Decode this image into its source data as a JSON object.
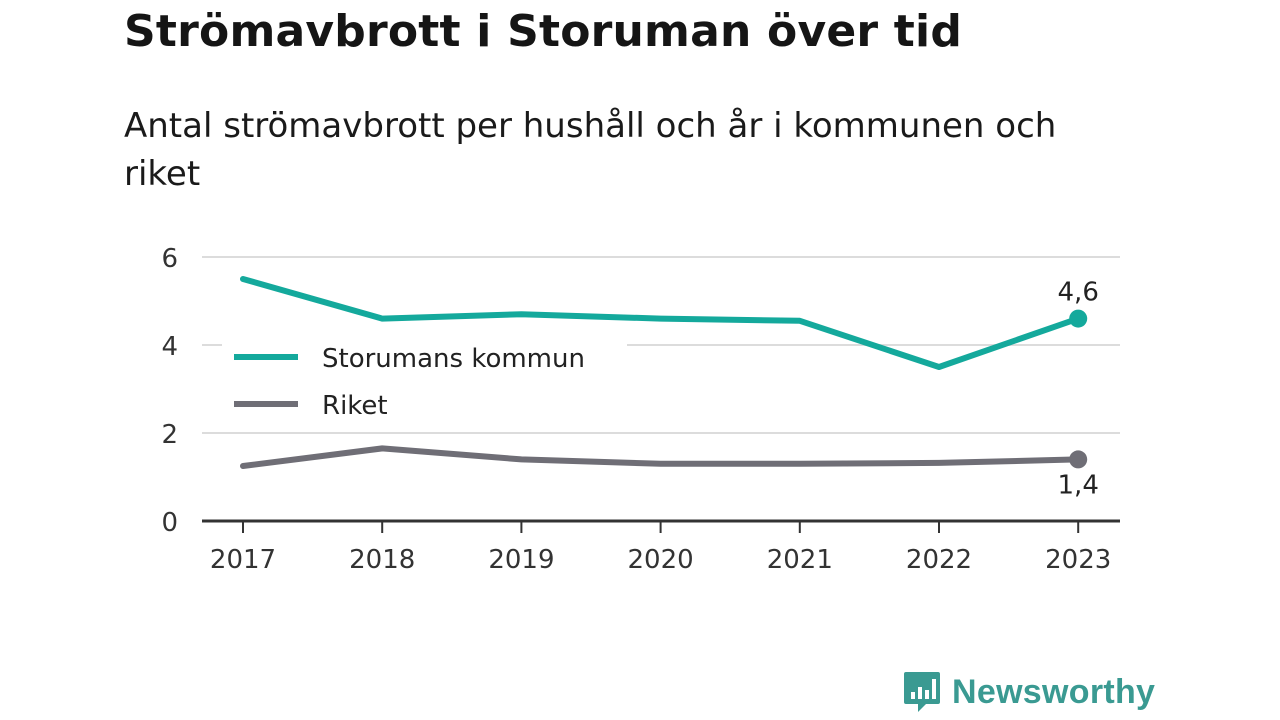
{
  "header": {
    "title": "Strömavbrott i Storuman över tid",
    "subtitle": "Antal strömavbrott per hushåll och år i kommunen och riket"
  },
  "brand": {
    "name": "Newsworthy",
    "icon": "newsworthy-logo-icon",
    "color": "#3a9a92"
  },
  "chart_data": {
    "type": "line",
    "x": [
      "2017",
      "2018",
      "2019",
      "2020",
      "2021",
      "2022",
      "2023"
    ],
    "ylim": [
      0,
      6
    ],
    "yticks": [
      "0",
      "2",
      "4",
      "6"
    ],
    "grid": true,
    "legend_position": "middle-left",
    "series": [
      {
        "name": "Storumans kommun",
        "color": "#14a99c",
        "values": [
          5.5,
          4.6,
          4.7,
          4.6,
          4.55,
          3.5,
          4.6
        ],
        "end_label": "4,6",
        "end_label_side": "above"
      },
      {
        "name": "Riket",
        "color": "#6f6e76",
        "values": [
          1.25,
          1.65,
          1.4,
          1.3,
          1.3,
          1.32,
          1.4
        ],
        "end_label": "1,4",
        "end_label_side": "below"
      }
    ]
  }
}
